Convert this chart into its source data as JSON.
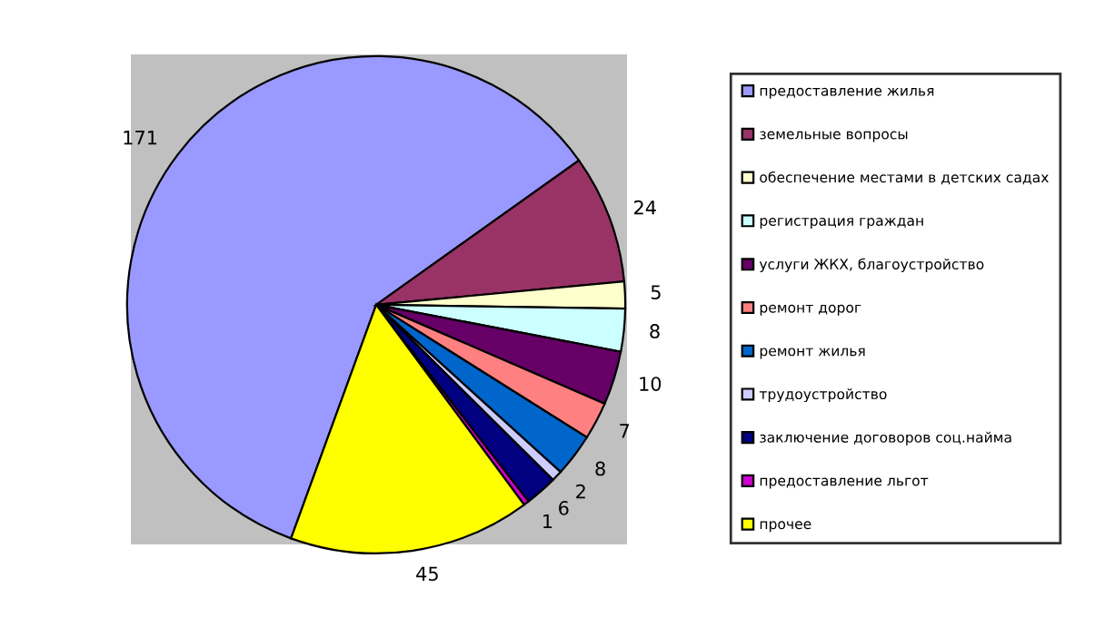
{
  "chart_data": {
    "type": "pie",
    "categories": [
      "предоставление жилья",
      "земельные вопросы",
      "обеспечение местами в детских садах",
      "регистрация граждан",
      "услуги ЖКХ, благоустройство",
      "ремонт дорог",
      "ремонт жилья",
      "трудоустройство",
      "заключение договоров соц.найма",
      "предоставление льгот",
      "прочее"
    ],
    "values": [
      171,
      24,
      5,
      8,
      10,
      7,
      8,
      2,
      6,
      1,
      45
    ],
    "colors": [
      "#9999ff",
      "#993366",
      "#ffffcc",
      "#ccffff",
      "#660066",
      "#ff8080",
      "#0066cc",
      "#ccccff",
      "#000080",
      "#cc00cc",
      "#ffff00"
    ],
    "data_labels": true,
    "legend": "right"
  }
}
